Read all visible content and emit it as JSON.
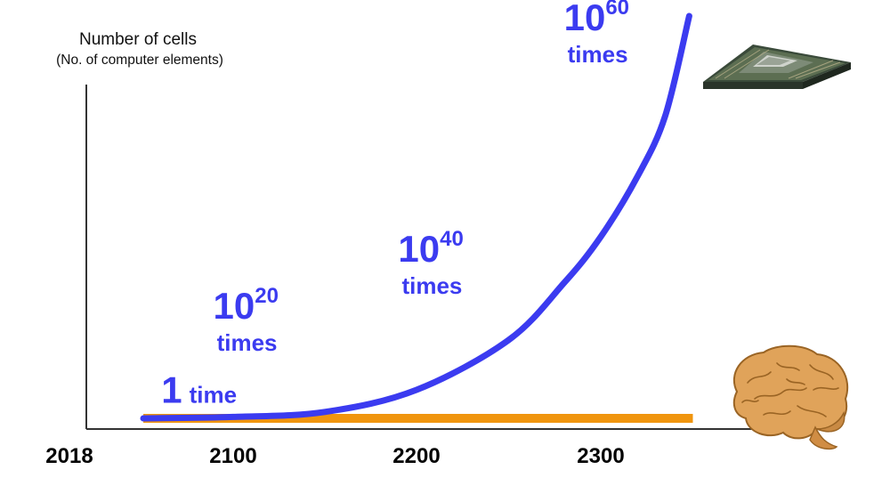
{
  "chart_data": {
    "type": "line",
    "ylabel": "Number of cells",
    "ylabel_sub": "(No. of computer elements)",
    "x_ticks": [
      "2018",
      "2100",
      "2200",
      "2300"
    ],
    "series": [
      {
        "kind": "curve",
        "color": "#3b3bf0",
        "x": [
          2055,
          2100,
          2150,
          2200,
          2250,
          2280,
          2300,
          2320,
          2335,
          2348
        ],
        "y": [
          0,
          2,
          9,
          40,
          110,
          190,
          255,
          340,
          425,
          565
        ]
      },
      {
        "kind": "flat",
        "color": "#f0950e",
        "x": [
          2055,
          2350
        ],
        "y": [
          0,
          0
        ]
      }
    ],
    "annotations": [
      {
        "big": "1",
        "word": "time",
        "x": 2064,
        "y": 22
      },
      {
        "big": "10",
        "sup": "20",
        "word": "times",
        "x": 2090,
        "y": 140
      },
      {
        "big": "10",
        "sup": "40",
        "word": "times",
        "x": 2190,
        "y": 220
      },
      {
        "big": "10",
        "sup": "60",
        "word": "times",
        "x": 2280,
        "y": 545
      }
    ],
    "accent_color": "#3b3bf0",
    "axis_color": "#333333",
    "icons": {
      "chip": "cpu-chip-icon",
      "brain": "brain-icon"
    }
  }
}
